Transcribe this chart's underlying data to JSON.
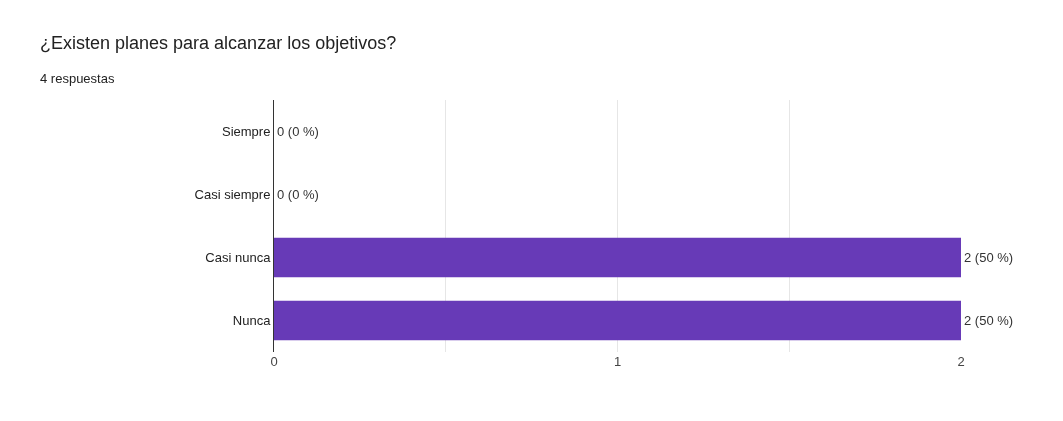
{
  "chart_data": {
    "type": "bar",
    "orientation": "horizontal",
    "title": "¿Existen planes para alcanzar los objetivos?",
    "subtitle": "4 respuestas",
    "categories": [
      "Siempre",
      "Casi siempre",
      "Casi nunca",
      "Nunca"
    ],
    "values": [
      0,
      0,
      2,
      2
    ],
    "value_labels": [
      "0 (0 %)",
      "0 (0 %)",
      "2 (50 %)",
      "2 (50 %)"
    ],
    "color": "#673ab7",
    "xlim": [
      0,
      2
    ],
    "xticks": [
      0,
      {
        "value": 0.5,
        "label": null
      },
      1,
      {
        "value": 1.5,
        "label": null
      },
      2
    ],
    "grid": "x",
    "legend": false
  }
}
